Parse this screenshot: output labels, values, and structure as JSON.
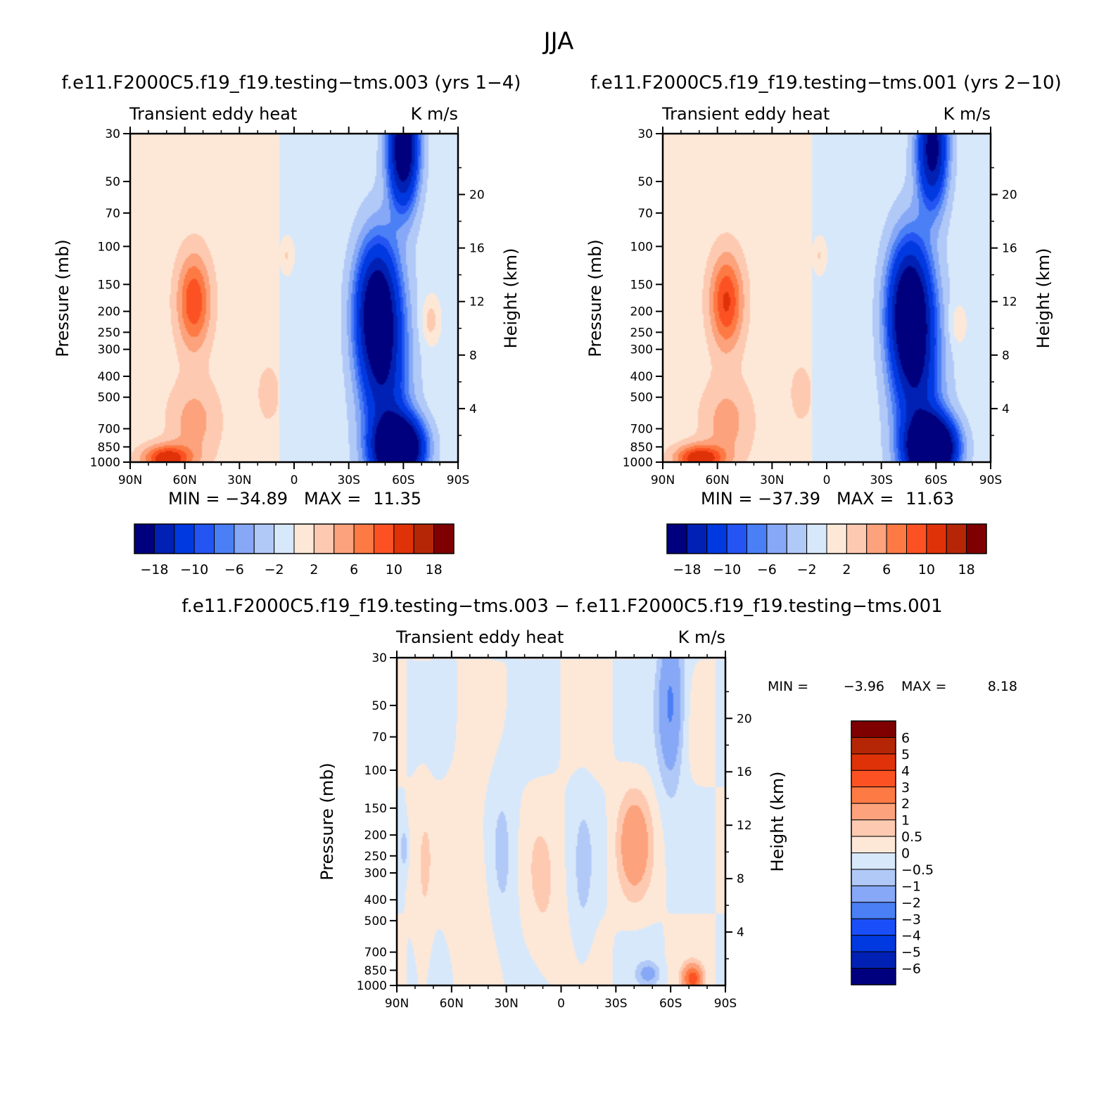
{
  "figure_title": "JJA",
  "chart_data": [
    {
      "type": "heatmap",
      "id": "p1",
      "title": "f.e11.F2000C5.f19_f19.testing−tms.003 (yrs 1−4)",
      "left_label": "Transient eddy heat",
      "right_label": "K m/s",
      "ylabel": "Pressure (mb)",
      "y2label": "Height (km)",
      "xlim": [
        90,
        -90
      ],
      "ylim": [
        1000,
        30
      ],
      "x_ticks": [
        {
          "v": 90,
          "t": "90N"
        },
        {
          "v": 60,
          "t": "60N"
        },
        {
          "v": 30,
          "t": "30N"
        },
        {
          "v": 0,
          "t": "0"
        },
        {
          "v": -30,
          "t": "30S"
        },
        {
          "v": -60,
          "t": "60S"
        },
        {
          "v": -90,
          "t": "90S"
        }
      ],
      "y_ticks": [
        30,
        50,
        70,
        100,
        150,
        200,
        250,
        300,
        400,
        500,
        700,
        850,
        1000
      ],
      "y2_ticks": [
        4,
        8,
        12,
        16,
        20
      ],
      "min_label": "MIN =",
      "min_value": "−34.89",
      "max_label": "MAX =",
      "max_value": "11.35",
      "levels": [
        -18,
        -14,
        -10,
        -8,
        -6,
        -4,
        -2,
        0,
        2,
        4,
        6,
        8,
        10,
        14,
        18
      ],
      "colorbar_labels": [
        "−18",
        "−10",
        "−6",
        "−2",
        "2",
        "6",
        "10",
        "18"
      ],
      "features": [
        {
          "lat": 55,
          "p": 180,
          "amp": 9,
          "wlat": 9,
          "wp": 0.5
        },
        {
          "lat": 70,
          "p": 960,
          "amp": 11,
          "wlat": 13,
          "wp": 0.14
        },
        {
          "lat": 55,
          "p": 650,
          "amp": 4,
          "wlat": 14,
          "wp": 0.45
        },
        {
          "lat": 4,
          "p": 110,
          "amp": 3,
          "wlat": 4,
          "wp": 0.2
        },
        {
          "lat": -45,
          "p": 200,
          "amp": -20,
          "wlat": 11,
          "wp": 0.7
        },
        {
          "lat": -58,
          "p": 860,
          "amp": -34,
          "wlat": 12,
          "wp": 0.3
        },
        {
          "lat": -60,
          "p": 35,
          "amp": -24,
          "wlat": 8,
          "wp": 0.6
        },
        {
          "lat": -50,
          "p": 450,
          "amp": -12,
          "wlat": 13,
          "wp": 1.2
        },
        {
          "lat": -75,
          "p": 220,
          "amp": 4,
          "wlat": 5,
          "wp": 0.25
        },
        {
          "lat": 14,
          "p": 480,
          "amp": 2.5,
          "wlat": 6,
          "wp": 0.3
        }
      ]
    },
    {
      "type": "heatmap",
      "id": "p2",
      "title": "f.e11.F2000C5.f19_f19.testing−tms.001 (yrs 2−10)",
      "left_label": "Transient eddy heat",
      "right_label": "K m/s",
      "ylabel": "Pressure (mb)",
      "y2label": "Height (km)",
      "xlim": [
        90,
        -90
      ],
      "ylim": [
        1000,
        30
      ],
      "x_ticks": [
        {
          "v": 90,
          "t": "90N"
        },
        {
          "v": 60,
          "t": "60N"
        },
        {
          "v": 30,
          "t": "30N"
        },
        {
          "v": 0,
          "t": "0"
        },
        {
          "v": -30,
          "t": "30S"
        },
        {
          "v": -60,
          "t": "60S"
        },
        {
          "v": -90,
          "t": "90S"
        }
      ],
      "y_ticks": [
        30,
        50,
        70,
        100,
        150,
        200,
        250,
        300,
        400,
        500,
        700,
        850,
        1000
      ],
      "y2_ticks": [
        4,
        8,
        12,
        16,
        20
      ],
      "min_label": "MIN =",
      "min_value": "−37.39",
      "max_label": "MAX =",
      "max_value": "11.63",
      "levels": [
        -18,
        -14,
        -10,
        -8,
        -6,
        -4,
        -2,
        0,
        2,
        4,
        6,
        8,
        10,
        14,
        18
      ],
      "colorbar_labels": [
        "−18",
        "−10",
        "−6",
        "−2",
        "2",
        "6",
        "10",
        "18"
      ],
      "features": [
        {
          "lat": 55,
          "p": 180,
          "amp": 9.5,
          "wlat": 9,
          "wp": 0.5
        },
        {
          "lat": 70,
          "p": 960,
          "amp": 11.5,
          "wlat": 13,
          "wp": 0.14
        },
        {
          "lat": 55,
          "p": 650,
          "amp": 4,
          "wlat": 14,
          "wp": 0.45
        },
        {
          "lat": 4,
          "p": 110,
          "amp": 3,
          "wlat": 4,
          "wp": 0.2
        },
        {
          "lat": -45,
          "p": 200,
          "amp": -22,
          "wlat": 11,
          "wp": 0.7
        },
        {
          "lat": -58,
          "p": 860,
          "amp": -37,
          "wlat": 12,
          "wp": 0.3
        },
        {
          "lat": -58,
          "p": 35,
          "amp": -20,
          "wlat": 8,
          "wp": 0.6
        },
        {
          "lat": -50,
          "p": 450,
          "amp": -12,
          "wlat": 13,
          "wp": 1.2
        },
        {
          "lat": -72,
          "p": 230,
          "amp": 2.5,
          "wlat": 5,
          "wp": 0.25
        },
        {
          "lat": 14,
          "p": 480,
          "amp": 2.5,
          "wlat": 6,
          "wp": 0.3
        }
      ]
    },
    {
      "type": "heatmap",
      "id": "p3",
      "title": "f.e11.F2000C5.f19_f19.testing−tms.003 − f.e11.F2000C5.f19_f19.testing−tms.001",
      "left_label": "Transient eddy heat",
      "right_label": "K m/s",
      "ylabel": "Pressure (mb)",
      "y2label": "Height (km)",
      "xlim": [
        90,
        -90
      ],
      "ylim": [
        1000,
        30
      ],
      "x_ticks": [
        {
          "v": 90,
          "t": "90N"
        },
        {
          "v": 60,
          "t": "60N"
        },
        {
          "v": 30,
          "t": "30N"
        },
        {
          "v": 0,
          "t": "0"
        },
        {
          "v": -30,
          "t": "30S"
        },
        {
          "v": -60,
          "t": "60S"
        },
        {
          "v": -90,
          "t": "90S"
        }
      ],
      "y_ticks": [
        30,
        50,
        70,
        100,
        150,
        200,
        250,
        300,
        400,
        500,
        700,
        850,
        1000
      ],
      "y2_ticks": [
        4,
        8,
        12,
        16,
        20
      ],
      "min_label": "MIN =",
      "min_value": "−3.96",
      "max_label": "MAX =",
      "max_value": "8.18",
      "levels": [
        -6,
        -5,
        -4,
        -3,
        -2,
        -1,
        -0.5,
        0,
        0.5,
        1,
        2,
        3,
        4,
        5,
        6
      ],
      "colorbar_labels": [
        "6",
        "5",
        "4",
        "3",
        "2",
        "1",
        "0.5",
        "0",
        "−0.5",
        "−1",
        "−2",
        "−3",
        "−4",
        "−5",
        "−6"
      ],
      "features": [
        {
          "lat": -60,
          "p": 50,
          "amp": -2.2,
          "wlat": 7,
          "wp": 0.8
        },
        {
          "lat": -40,
          "p": 220,
          "amp": 1.6,
          "wlat": 9,
          "wp": 0.55
        },
        {
          "lat": -72,
          "p": 930,
          "amp": 3.5,
          "wlat": 5,
          "wp": 0.14
        },
        {
          "lat": -48,
          "p": 880,
          "amp": -1.2,
          "wlat": 6,
          "wp": 0.12
        },
        {
          "lat": 50,
          "p": 300,
          "amp": 0.6,
          "wlat": 12,
          "wp": 0.9
        },
        {
          "lat": 10,
          "p": 400,
          "amp": 0.5,
          "wlat": 10,
          "wp": 0.9
        },
        {
          "lat": 75,
          "p": 400,
          "amp": 0.4,
          "wlat": 5,
          "wp": 1.3
        },
        {
          "lat": 86,
          "p": 230,
          "amp": -0.9,
          "wlat": 2,
          "wp": 0.2
        },
        {
          "lat": 32,
          "p": 250,
          "amp": -0.6,
          "wlat": 8,
          "wp": 1.0
        },
        {
          "lat": -12,
          "p": 330,
          "amp": -0.5,
          "wlat": 6,
          "wp": 1.0
        }
      ]
    }
  ],
  "colors": {
    "palette_20": [
      "#00007f",
      "#0021b3",
      "#0039e0",
      "#2454f2",
      "#4a7ff5",
      "#87a8f6",
      "#b1c9f7",
      "#d8e8fb",
      "#fde8d8",
      "#fdcab1",
      "#fca27c",
      "#fd7a45",
      "#fc5223",
      "#e03208",
      "#b52607",
      "#7f0000"
    ],
    "palette_diff": [
      "#00007f",
      "#0021b3",
      "#0039e0",
      "#1a4ef8",
      "#4a7ff5",
      "#87a8f6",
      "#b1c9f7",
      "#d8e8fb",
      "#fde8d8",
      "#fdcab1",
      "#fca27c",
      "#fd7a45",
      "#fc5223",
      "#e03208",
      "#b52607",
      "#7f0000"
    ]
  }
}
